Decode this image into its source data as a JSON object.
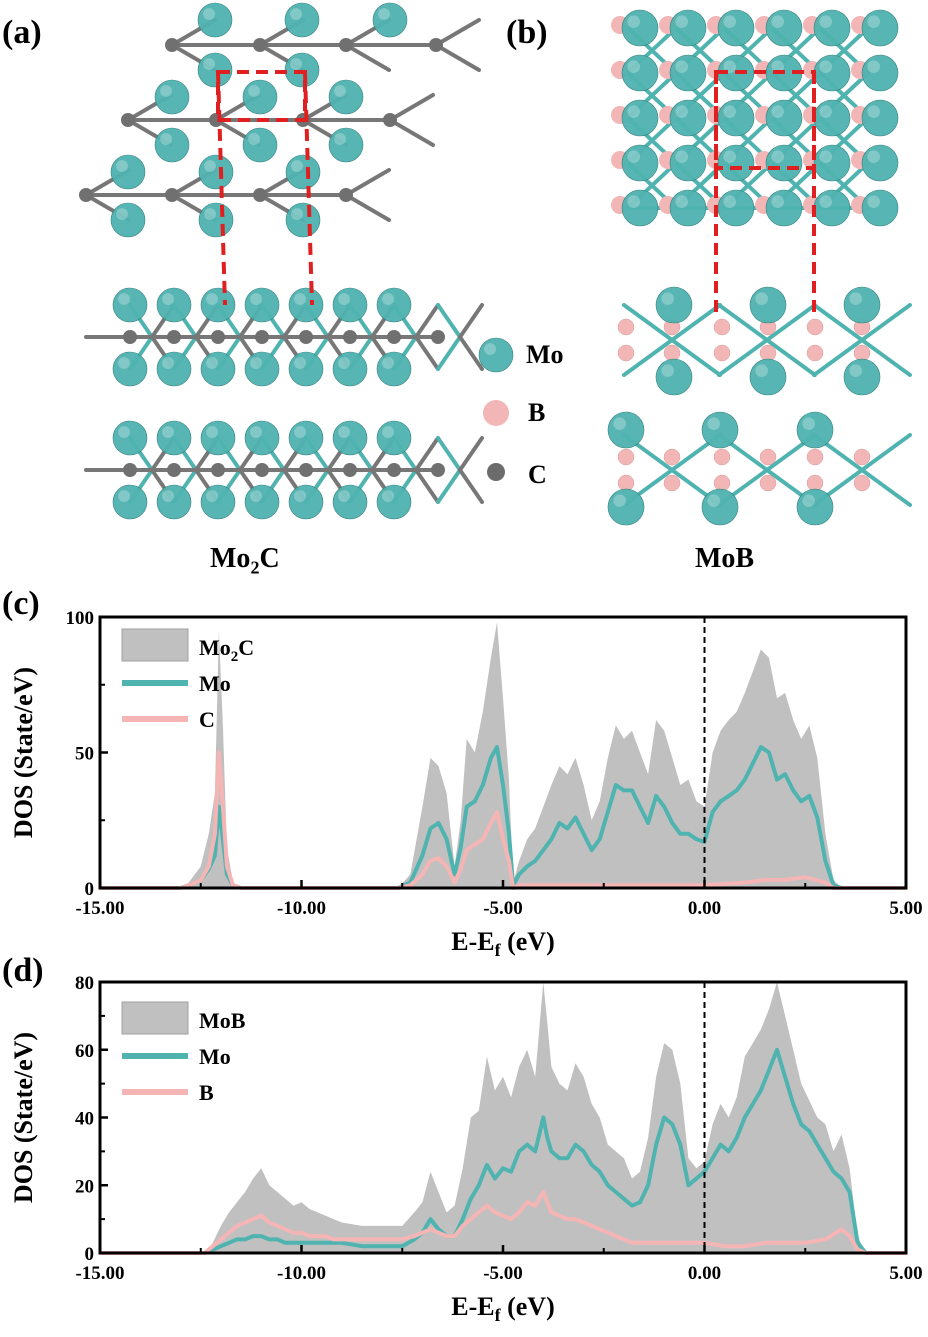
{
  "panels": {
    "a": "(a)",
    "b": "(b)",
    "c": "(c)",
    "d": "(d)"
  },
  "structures": {
    "mo2c_title": "Mo",
    "mo2c_sub": "2",
    "mo2c_tail": "C",
    "mob_title": "MoB",
    "legend": [
      {
        "label": "Mo",
        "color": "#4fb3b0"
      },
      {
        "label": "B",
        "color": "#f2b6b6"
      },
      {
        "label": "C",
        "color": "#6b6b6b"
      }
    ],
    "colors": {
      "mo": "#4fb3b0",
      "b": "#f2b6b6",
      "c": "#707070",
      "bond_mo": "#4fb3b0",
      "cell": "#e02020"
    }
  },
  "chart_data": [
    {
      "type": "area",
      "panel": "(c)",
      "xlabel": "E-E",
      "xlabel_sub": "f",
      "xlabel_unit": " (eV)",
      "ylabel": "DOS (State/eV)",
      "xlim": [
        -15,
        5
      ],
      "ylim": [
        0,
        100
      ],
      "xticks": [
        -15,
        -10,
        -5,
        0,
        5
      ],
      "xtick_labels": [
        "-15.00",
        "-10.00",
        "-5.00",
        "0.00",
        "5.00"
      ],
      "yticks": [
        0,
        50,
        100
      ],
      "ytick_labels": [
        "0",
        "50",
        "100"
      ],
      "fermi_line": 0,
      "legend": {
        "placement": "top-left"
      },
      "series": [
        {
          "name": "Mo2C",
          "name_main": "Mo",
          "name_sub": "2",
          "name_tail": "C",
          "kind": "fill",
          "color": "#c0c0c0",
          "x": [
            -15,
            -13,
            -12.8,
            -12.5,
            -12.3,
            -12.15,
            -12.05,
            -11.95,
            -11.85,
            -11.7,
            -11.5,
            -10,
            -7.6,
            -7.3,
            -7,
            -6.8,
            -6.6,
            -6.4,
            -6.2,
            -6.05,
            -5.9,
            -5.7,
            -5.5,
            -5.3,
            -5.15,
            -5.0,
            -4.85,
            -4.75,
            -4.6,
            -4.4,
            -4.2,
            -4.0,
            -3.8,
            -3.6,
            -3.4,
            -3.2,
            -3.0,
            -2.8,
            -2.6,
            -2.4,
            -2.2,
            -2.0,
            -1.8,
            -1.6,
            -1.4,
            -1.2,
            -1.0,
            -0.8,
            -0.6,
            -0.4,
            -0.2,
            0,
            0.2,
            0.4,
            0.6,
            0.8,
            1.0,
            1.2,
            1.4,
            1.6,
            1.8,
            2.0,
            2.2,
            2.4,
            2.6,
            2.8,
            3.0,
            3.2,
            3.4,
            5
          ],
          "y": [
            0,
            0,
            2,
            8,
            20,
            35,
            95,
            60,
            15,
            2,
            0,
            0,
            0,
            5,
            30,
            48,
            45,
            35,
            8,
            25,
            55,
            50,
            65,
            85,
            98,
            70,
            40,
            2,
            10,
            18,
            22,
            30,
            38,
            45,
            42,
            48,
            38,
            25,
            32,
            48,
            60,
            55,
            58,
            50,
            42,
            62,
            58,
            48,
            38,
            40,
            32,
            30,
            50,
            58,
            62,
            65,
            72,
            80,
            88,
            85,
            70,
            72,
            62,
            55,
            60,
            48,
            20,
            3,
            0,
            0
          ]
        },
        {
          "name": "Mo",
          "kind": "line",
          "color": "#4fb3b0",
          "x": [
            -15,
            -13,
            -12.8,
            -12.5,
            -12.3,
            -12.15,
            -12.05,
            -11.95,
            -11.85,
            -11.7,
            -11.5,
            -10,
            -7.6,
            -7.3,
            -7,
            -6.8,
            -6.6,
            -6.4,
            -6.2,
            -6.05,
            -5.9,
            -5.7,
            -5.5,
            -5.3,
            -5.15,
            -5.0,
            -4.85,
            -4.75,
            -4.6,
            -4.4,
            -4.2,
            -4.0,
            -3.8,
            -3.6,
            -3.4,
            -3.2,
            -3.0,
            -2.8,
            -2.6,
            -2.4,
            -2.2,
            -2.0,
            -1.8,
            -1.6,
            -1.4,
            -1.2,
            -1.0,
            -0.8,
            -0.6,
            -0.4,
            -0.2,
            0,
            0.2,
            0.4,
            0.6,
            0.8,
            1.0,
            1.2,
            1.4,
            1.6,
            1.8,
            2.0,
            2.2,
            2.4,
            2.6,
            2.8,
            3.0,
            3.2,
            3.4,
            5
          ],
          "y": [
            0,
            0,
            1,
            3,
            7,
            12,
            30,
            18,
            5,
            1,
            0,
            0,
            0,
            2,
            12,
            22,
            24,
            18,
            5,
            15,
            30,
            32,
            38,
            48,
            52,
            38,
            20,
            1,
            5,
            8,
            10,
            14,
            18,
            24,
            22,
            26,
            20,
            14,
            18,
            28,
            38,
            36,
            36,
            30,
            24,
            34,
            30,
            24,
            20,
            20,
            18,
            17,
            28,
            32,
            34,
            36,
            40,
            46,
            52,
            50,
            40,
            42,
            36,
            32,
            34,
            26,
            10,
            1,
            0,
            0
          ]
        },
        {
          "name": "C",
          "kind": "line",
          "color": "#f5b5b5",
          "x": [
            -15,
            -13,
            -12.8,
            -12.5,
            -12.3,
            -12.15,
            -12.05,
            -11.95,
            -11.85,
            -11.7,
            -11.5,
            -10,
            -7.6,
            -7.3,
            -7,
            -6.8,
            -6.6,
            -6.4,
            -6.2,
            -6.05,
            -5.9,
            -5.7,
            -5.5,
            -5.3,
            -5.15,
            -5.0,
            -4.85,
            -4.75,
            -4.6,
            -4.0,
            -3.0,
            -2.0,
            -1.0,
            0,
            1.0,
            1.5,
            2.0,
            2.5,
            3.0,
            3.2,
            5
          ],
          "y": [
            0,
            0,
            1,
            3,
            8,
            20,
            50,
            30,
            8,
            1,
            0,
            0,
            0,
            1,
            5,
            10,
            11,
            8,
            2,
            7,
            14,
            16,
            18,
            24,
            28,
            18,
            10,
            0,
            1,
            1,
            1,
            1,
            1,
            1,
            2,
            3,
            3,
            4,
            2,
            0,
            0
          ]
        }
      ]
    },
    {
      "type": "area",
      "panel": "(d)",
      "xlabel": "E-E",
      "xlabel_sub": "f",
      "xlabel_unit": " (eV)",
      "ylabel": "DOS (State/eV)",
      "xlim": [
        -15,
        5
      ],
      "ylim": [
        0,
        80
      ],
      "xticks": [
        -15,
        -10,
        -5,
        0,
        5
      ],
      "xtick_labels": [
        "-15.00",
        "-10.00",
        "-5.00",
        "0.00",
        "5.00"
      ],
      "yticks": [
        0,
        20,
        40,
        60,
        80
      ],
      "ytick_labels": [
        "0",
        "20",
        "40",
        "60",
        "80"
      ],
      "fermi_line": 0,
      "legend": {
        "placement": "top-left"
      },
      "series": [
        {
          "name": "MoB",
          "kind": "fill",
          "color": "#c0c0c0",
          "x": [
            -15,
            -12.4,
            -12.2,
            -12.0,
            -11.8,
            -11.6,
            -11.4,
            -11.2,
            -11.0,
            -10.8,
            -10.6,
            -10.4,
            -10.2,
            -10.0,
            -9.8,
            -9.6,
            -9.4,
            -9.2,
            -9.0,
            -8.5,
            -8.0,
            -7.5,
            -7.2,
            -7.0,
            -6.8,
            -6.6,
            -6.4,
            -6.2,
            -6.0,
            -5.8,
            -5.6,
            -5.4,
            -5.2,
            -5.0,
            -4.8,
            -4.6,
            -4.4,
            -4.2,
            -4.0,
            -3.9,
            -3.8,
            -3.6,
            -3.4,
            -3.2,
            -3.0,
            -2.8,
            -2.6,
            -2.4,
            -2.2,
            -2.0,
            -1.8,
            -1.6,
            -1.4,
            -1.2,
            -1.0,
            -0.8,
            -0.6,
            -0.4,
            -0.2,
            0,
            0.2,
            0.4,
            0.6,
            0.8,
            1.0,
            1.2,
            1.4,
            1.6,
            1.8,
            2.0,
            2.2,
            2.4,
            2.6,
            2.8,
            3.0,
            3.2,
            3.4,
            3.6,
            3.8,
            4.0,
            5
          ],
          "y": [
            0,
            0,
            3,
            8,
            12,
            15,
            18,
            22,
            25,
            20,
            18,
            16,
            14,
            15,
            13,
            12,
            11,
            10,
            9,
            8,
            8,
            8,
            12,
            15,
            24,
            18,
            12,
            14,
            25,
            40,
            42,
            58,
            48,
            52,
            46,
            55,
            60,
            52,
            80,
            68,
            55,
            50,
            48,
            56,
            52,
            44,
            40,
            32,
            30,
            28,
            22,
            24,
            34,
            52,
            62,
            60,
            50,
            28,
            25,
            27,
            38,
            44,
            40,
            46,
            58,
            62,
            66,
            72,
            80,
            70,
            60,
            50,
            45,
            40,
            38,
            30,
            35,
            25,
            5,
            0,
            0
          ]
        },
        {
          "name": "Mo",
          "kind": "line",
          "color": "#4fb3b0",
          "x": [
            -15,
            -12.4,
            -12.2,
            -12.0,
            -11.8,
            -11.6,
            -11.4,
            -11.2,
            -11.0,
            -10.8,
            -10.6,
            -10.4,
            -10.2,
            -10.0,
            -9.8,
            -9.6,
            -9.4,
            -9.2,
            -9.0,
            -8.5,
            -8.0,
            -7.5,
            -7.2,
            -7.0,
            -6.8,
            -6.6,
            -6.4,
            -6.2,
            -6.0,
            -5.8,
            -5.6,
            -5.4,
            -5.2,
            -5.0,
            -4.8,
            -4.6,
            -4.4,
            -4.2,
            -4.0,
            -3.9,
            -3.8,
            -3.6,
            -3.4,
            -3.2,
            -3.0,
            -2.8,
            -2.6,
            -2.4,
            -2.2,
            -2.0,
            -1.8,
            -1.6,
            -1.4,
            -1.2,
            -1.0,
            -0.8,
            -0.6,
            -0.4,
            -0.2,
            0,
            0.2,
            0.4,
            0.6,
            0.8,
            1.0,
            1.2,
            1.4,
            1.6,
            1.8,
            2.0,
            2.2,
            2.4,
            2.6,
            2.8,
            3.0,
            3.2,
            3.4,
            3.6,
            3.8,
            4.0,
            5
          ],
          "y": [
            0,
            0,
            1,
            2,
            3,
            4,
            4,
            5,
            5,
            4,
            4,
            3,
            3,
            3,
            3,
            3,
            3,
            3,
            3,
            2,
            2,
            2,
            4,
            6,
            10,
            7,
            5,
            5,
            10,
            16,
            20,
            26,
            22,
            25,
            24,
            30,
            32,
            30,
            40,
            34,
            30,
            28,
            28,
            32,
            30,
            26,
            24,
            20,
            18,
            16,
            14,
            15,
            20,
            32,
            40,
            38,
            32,
            20,
            22,
            24,
            28,
            32,
            30,
            34,
            40,
            44,
            48,
            54,
            60,
            52,
            44,
            38,
            36,
            32,
            28,
            24,
            22,
            18,
            3,
            0,
            0
          ]
        },
        {
          "name": "B",
          "kind": "line",
          "color": "#f5b5b5",
          "x": [
            -15,
            -12.4,
            -12.2,
            -12.0,
            -11.8,
            -11.6,
            -11.4,
            -11.2,
            -11.0,
            -10.8,
            -10.6,
            -10.4,
            -10.2,
            -10.0,
            -9.8,
            -9.6,
            -9.4,
            -9.2,
            -9.0,
            -8.5,
            -8.0,
            -7.5,
            -7.2,
            -7.0,
            -6.8,
            -6.6,
            -6.4,
            -6.2,
            -6.0,
            -5.8,
            -5.6,
            -5.4,
            -5.2,
            -5.0,
            -4.8,
            -4.6,
            -4.4,
            -4.2,
            -4.0,
            -3.9,
            -3.8,
            -3.6,
            -3.4,
            -3.2,
            -3.0,
            -2.8,
            -2.6,
            -2.4,
            -2.2,
            -2.0,
            -1.8,
            -1.6,
            -1.4,
            -1.2,
            -1.0,
            -0.5,
            0,
            0.5,
            1.0,
            1.5,
            2.0,
            2.5,
            3.0,
            3.4,
            3.6,
            3.8,
            4.0,
            5
          ],
          "y": [
            0,
            0,
            2,
            4,
            6,
            8,
            9,
            10,
            11,
            9,
            8,
            7,
            6,
            6,
            5,
            5,
            5,
            4,
            4,
            4,
            4,
            4,
            5,
            6,
            7,
            6,
            5,
            5,
            8,
            10,
            12,
            14,
            12,
            11,
            10,
            12,
            15,
            14,
            18,
            15,
            12,
            11,
            10,
            10,
            9,
            8,
            7,
            6,
            5,
            4,
            3,
            3,
            3,
            3,
            3,
            3,
            3,
            2,
            2,
            3,
            3,
            3,
            4,
            7,
            5,
            1,
            0,
            0
          ]
        }
      ]
    }
  ]
}
